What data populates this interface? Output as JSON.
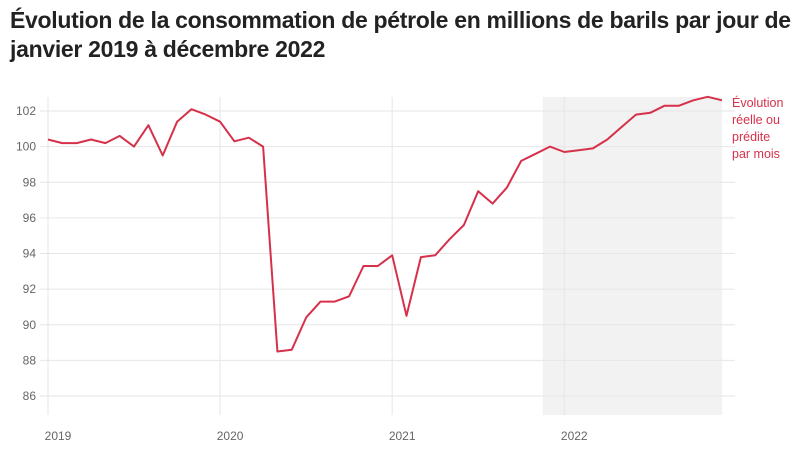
{
  "chart_data": {
    "type": "line",
    "title": "Évolution de la consommation de pétrole en millions de barils par jour de janvier 2019 à décembre 2022",
    "xlabel": "",
    "ylabel": "",
    "x_ticks": [
      "2019",
      "2020",
      "2021",
      "2022"
    ],
    "y_ticks": [
      86,
      88,
      90,
      92,
      94,
      96,
      98,
      100,
      102
    ],
    "ylim": [
      85.5,
      103
    ],
    "x_start": "2019-01",
    "x_end": "2022-12",
    "grid": true,
    "line_color": "#d6314a",
    "shaded_region": {
      "from_month_index": 34.5,
      "to_month_index": 47,
      "color": "#f2f2f2"
    },
    "series": [
      {
        "name": "Évolution réelle ou prédite par mois",
        "annotation_lines": [
          "Évolution",
          "réelle ou",
          "prédite",
          "par mois"
        ],
        "values": [
          100.4,
          100.2,
          100.2,
          100.4,
          100.2,
          100.6,
          100.0,
          101.2,
          99.5,
          101.4,
          102.1,
          101.8,
          101.4,
          100.3,
          100.5,
          100.0,
          88.5,
          88.6,
          90.4,
          91.3,
          91.3,
          91.6,
          93.3,
          93.3,
          93.9,
          90.5,
          93.8,
          93.9,
          94.8,
          95.6,
          97.5,
          96.8,
          97.7,
          99.2,
          99.6,
          100.0,
          99.7,
          99.8,
          99.9,
          100.4,
          101.1,
          101.8,
          101.9,
          102.3,
          102.3,
          102.6,
          102.8,
          102.6
        ]
      }
    ]
  }
}
